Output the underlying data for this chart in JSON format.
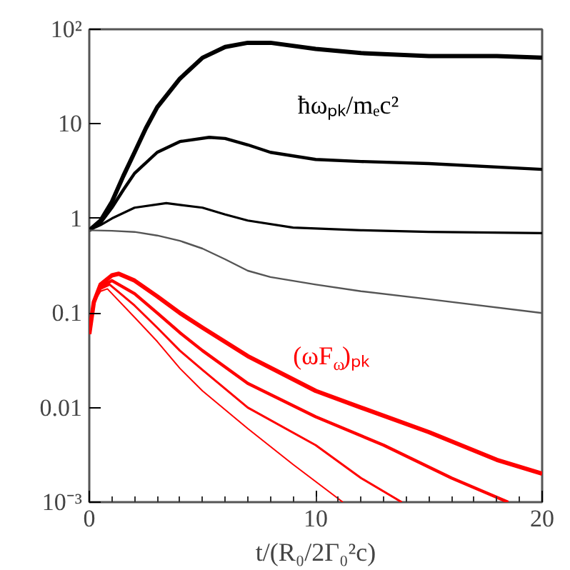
{
  "chart_data": {
    "type": "line",
    "xlabel": "t/(R₀/2Γ₀²c)",
    "log": "y",
    "xlim": [
      0,
      20
    ],
    "ylim": [
      0.001,
      100
    ],
    "xticks": [
      0,
      10,
      20
    ],
    "yticks": [
      {
        "value": 0.001,
        "label": "10⁻³"
      },
      0.01,
      0.1,
      1,
      10,
      {
        "value": 100,
        "label": "10²"
      }
    ],
    "series": [
      {
        "color": "#000000",
        "x": [
          0,
          0.5,
          1,
          1.5,
          2,
          2.5,
          3,
          4,
          5,
          6,
          7,
          8,
          10,
          12,
          15,
          18,
          20
        ],
        "values": [
          0.75,
          0.95,
          1.5,
          2.8,
          5,
          9,
          15,
          30,
          50,
          65,
          72,
          72,
          62,
          56,
          52,
          52,
          50
        ]
      },
      {
        "color": "#000000",
        "x": [
          0,
          0.5,
          1,
          1.5,
          2,
          3,
          4,
          5.3,
          6,
          7,
          8,
          10,
          12,
          15,
          20
        ],
        "values": [
          0.75,
          0.9,
          1.3,
          2,
          3,
          5,
          6.5,
          7.2,
          7,
          6,
          5,
          4.2,
          4,
          3.8,
          3.3
        ]
      },
      {
        "color": "#000000",
        "x": [
          0,
          0.5,
          1,
          2,
          3.4,
          5,
          6,
          7,
          9,
          12,
          15,
          20
        ],
        "values": [
          0.75,
          0.85,
          1.0,
          1.3,
          1.45,
          1.3,
          1.1,
          0.95,
          0.8,
          0.75,
          0.72,
          0.7
        ]
      },
      {
        "color": "#555555",
        "x": [
          0,
          1,
          2,
          3,
          4,
          5,
          6,
          7,
          8,
          10,
          12,
          15,
          20
        ],
        "values": [
          0.75,
          0.74,
          0.72,
          0.66,
          0.58,
          0.48,
          0.37,
          0.28,
          0.24,
          0.2,
          0.17,
          0.14,
          0.1
        ]
      },
      {
        "color": "#ff0000",
        "x": [
          0,
          0.2,
          0.5,
          1,
          1.3,
          2,
          3,
          4,
          5,
          7,
          10,
          12,
          15,
          18,
          20
        ],
        "values": [
          0.06,
          0.13,
          0.2,
          0.25,
          0.26,
          0.22,
          0.15,
          0.1,
          0.07,
          0.035,
          0.015,
          0.01,
          0.0055,
          0.0028,
          0.002
        ]
      },
      {
        "color": "#ff0000",
        "x": [
          0,
          0.2,
          0.5,
          1,
          2,
          3,
          4,
          5,
          7,
          10,
          13,
          16,
          18.5
        ],
        "values": [
          0.06,
          0.13,
          0.19,
          0.22,
          0.16,
          0.1,
          0.062,
          0.04,
          0.018,
          0.008,
          0.004,
          0.0018,
          0.001
        ]
      },
      {
        "color": "#ff0000",
        "x": [
          0,
          0.2,
          0.5,
          0.9,
          2,
          3,
          4,
          5,
          7,
          10,
          12,
          13.8
        ],
        "values": [
          0.06,
          0.13,
          0.18,
          0.2,
          0.12,
          0.07,
          0.04,
          0.025,
          0.01,
          0.004,
          0.0018,
          0.001
        ]
      },
      {
        "color": "#ff0000",
        "x": [
          0,
          0.2,
          0.5,
          0.8,
          2,
          3,
          4,
          5,
          7,
          9,
          11.2
        ],
        "values": [
          0.06,
          0.13,
          0.17,
          0.18,
          0.09,
          0.05,
          0.026,
          0.015,
          0.006,
          0.0025,
          0.001
        ]
      }
    ],
    "annotations": [
      "ħωₚₖ/mₑc²",
      "(ωF$_{ω}$)ₚₖ"
    ]
  }
}
